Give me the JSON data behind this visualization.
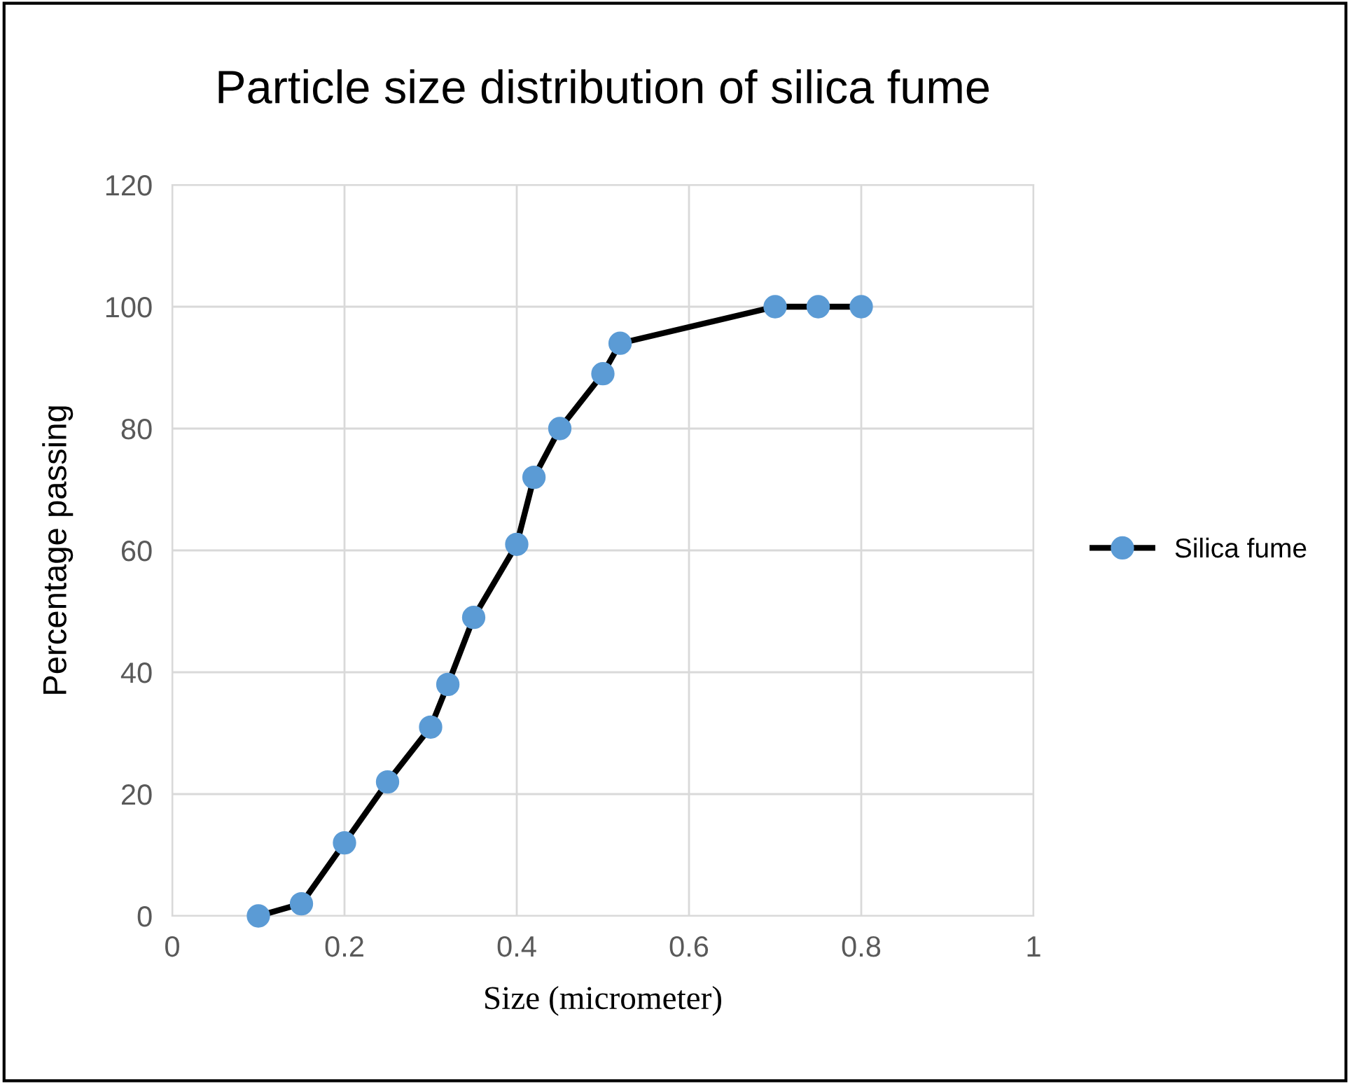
{
  "chart_data": {
    "type": "line",
    "title": "Particle size distribution of silica fume",
    "xlabel": "Size (micrometer)",
    "ylabel": "Percentage passing",
    "series": [
      {
        "name": "Silica fume",
        "color": "#5b9bd5",
        "x": [
          0.1,
          0.15,
          0.2,
          0.25,
          0.3,
          0.32,
          0.35,
          0.4,
          0.42,
          0.45,
          0.5,
          0.52,
          0.7,
          0.75,
          0.8
        ],
        "values": [
          0,
          2,
          12,
          22,
          31,
          38,
          49,
          61,
          72,
          80,
          89,
          94,
          100,
          100,
          100
        ]
      }
    ],
    "xlim": [
      0,
      1
    ],
    "xticks": [
      0,
      0.2,
      0.4,
      0.6,
      0.8,
      1
    ],
    "ylim": [
      0,
      120
    ],
    "yticks": [
      0,
      20,
      40,
      60,
      80,
      100,
      120
    ],
    "grid": true,
    "legend": "right",
    "marker": "circle",
    "line_style": "solid"
  }
}
